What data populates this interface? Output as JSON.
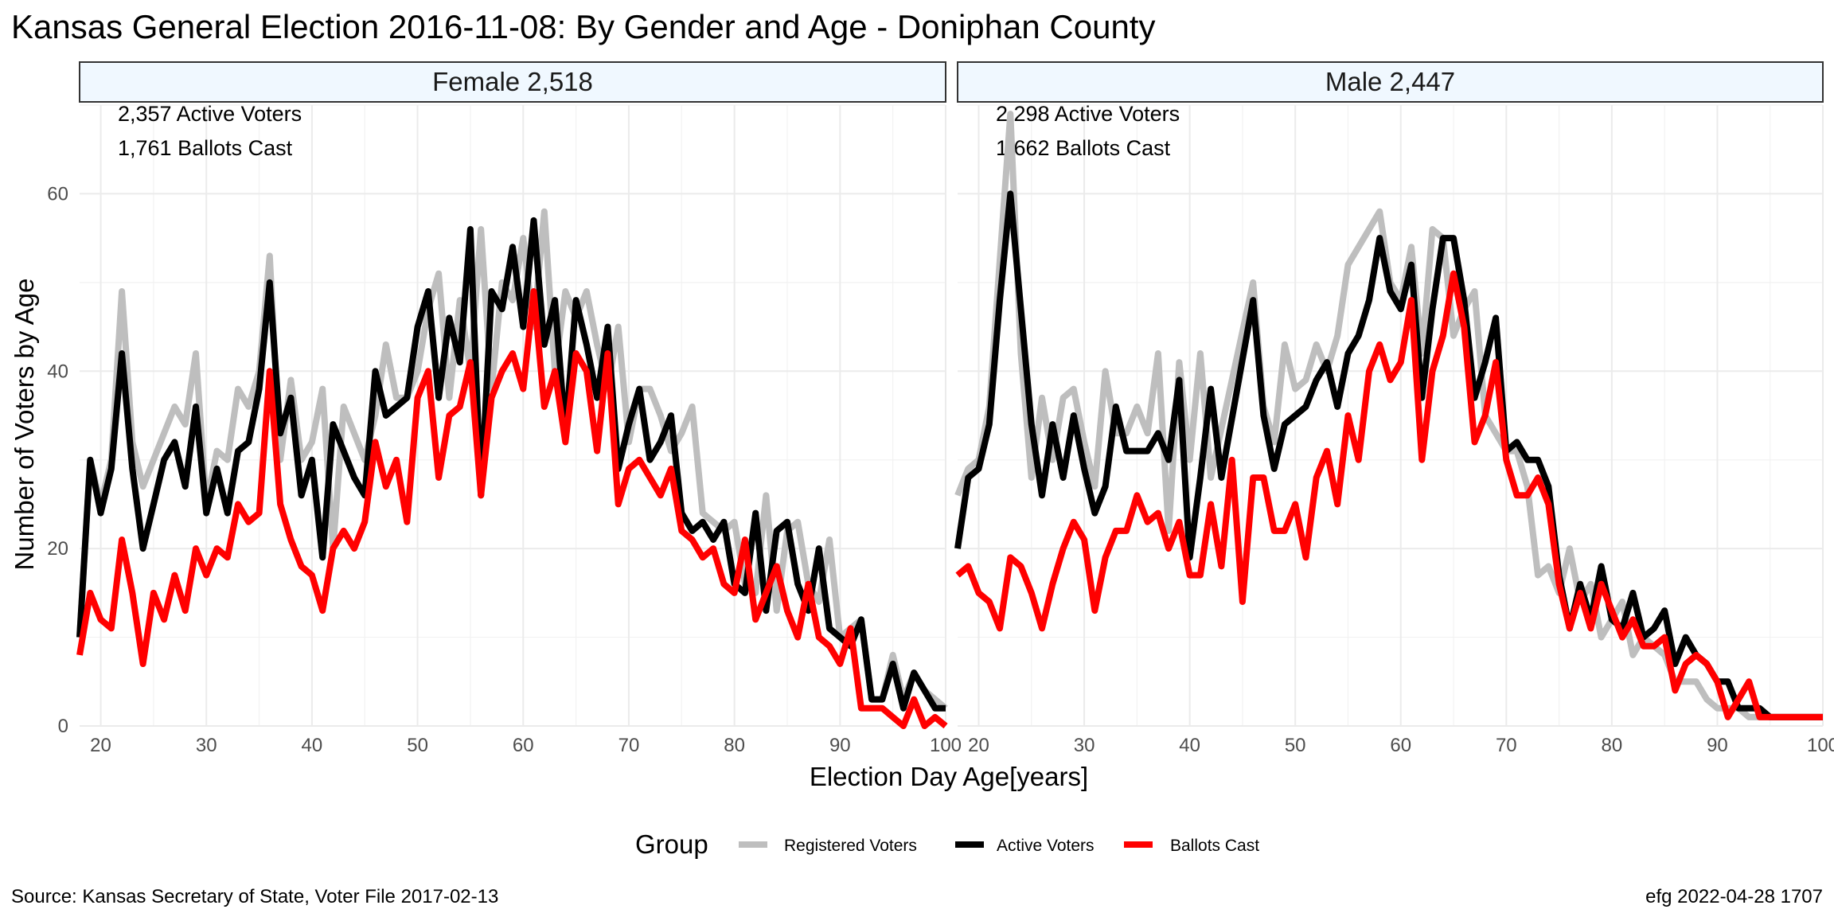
{
  "title": "Kansas General Election 2016-11-08:  By Gender and Age - Doniphan County",
  "caption_left": "Source:  Kansas Secretary of State, Voter File  2017-02-13",
  "caption_right": "efg 2022-04-28 1707",
  "colors": {
    "registered": "#bebebe",
    "active": "#000000",
    "ballots": "#ff0000",
    "strip_fill": "#f0f8ff"
  },
  "chart_data": {
    "type": "line",
    "xlabel": "Election Day Age[years]",
    "ylabel": "Number of Voters by Age",
    "xlim": [
      18,
      100
    ],
    "ylim": [
      0,
      70
    ],
    "x_ticks": [
      20,
      30,
      40,
      50,
      60,
      70,
      80,
      90,
      100
    ],
    "y_ticks": [
      0,
      20,
      40,
      60
    ],
    "legend": {
      "title": "Group",
      "position": "bottom",
      "entries": [
        "Registered Voters",
        "Active Voters",
        "Ballots Cast"
      ]
    },
    "panels": [
      {
        "strip": "Female 2,518",
        "annotations": [
          "2,357 Active Voters",
          "1,761 Ballots Cast"
        ],
        "x_start": 18,
        "series": [
          {
            "name": "Registered Voters",
            "values": [
              10,
              30,
              25,
              30,
              49,
              32,
              27,
              30,
              33,
              36,
              34,
              42,
              25,
              31,
              30,
              38,
              36,
              40,
              53,
              30,
              39,
              30,
              32,
              38,
              20,
              36,
              33,
              30,
              35,
              43,
              37,
              37,
              40,
              47,
              51,
              37,
              48,
              40,
              56,
              38,
              50,
              48,
              55,
              45,
              58,
              40,
              49,
              46,
              49,
              43,
              38,
              45,
              32,
              38,
              38,
              35,
              31,
              33,
              36,
              24,
              23,
              22,
              23,
              16,
              15,
              26,
              13,
              22,
              23,
              16,
              14,
              21,
              10,
              11,
              12,
              3,
              3,
              8,
              3,
              6,
              4,
              3,
              2
            ],
            "x": [
              18,
              19,
              20,
              21,
              22,
              23,
              24,
              25,
              26,
              27,
              28,
              29,
              30,
              31,
              32,
              33,
              34,
              35,
              36,
              37,
              38,
              39,
              40,
              41,
              42,
              43,
              44,
              45,
              46,
              47,
              48,
              49,
              50,
              51,
              52,
              53,
              54,
              55,
              56,
              57,
              58,
              59,
              60,
              61,
              62,
              63,
              64,
              65,
              66,
              67,
              68,
              69,
              70,
              71,
              72,
              73,
              74,
              75,
              76,
              77,
              78,
              79,
              80,
              81,
              82,
              83,
              84,
              85,
              86,
              87,
              88,
              89,
              90,
              91,
              92,
              93,
              94,
              95,
              96,
              97,
              98,
              99,
              100
            ]
          },
          {
            "name": "Active Voters",
            "values": [
              10,
              30,
              24,
              29,
              42,
              29,
              20,
              25,
              30,
              32,
              27,
              36,
              24,
              29,
              24,
              31,
              32,
              38,
              50,
              33,
              37,
              26,
              30,
              19,
              34,
              31,
              28,
              26,
              40,
              35,
              36,
              37,
              45,
              49,
              37,
              46,
              41,
              56,
              26,
              49,
              47,
              54,
              45,
              57,
              43,
              48,
              33,
              48,
              43,
              37,
              45,
              29,
              34,
              38,
              30,
              32,
              35,
              24,
              22,
              23,
              21,
              23,
              16,
              15,
              24,
              13,
              22,
              23,
              16,
              13,
              20,
              11,
              10,
              9,
              12,
              3,
              3,
              7,
              2,
              6,
              4,
              2,
              2
            ],
            "x": [
              18,
              19,
              20,
              21,
              22,
              23,
              24,
              25,
              26,
              27,
              28,
              29,
              30,
              31,
              32,
              33,
              34,
              35,
              36,
              37,
              38,
              39,
              40,
              41,
              42,
              43,
              44,
              45,
              46,
              47,
              48,
              49,
              50,
              51,
              52,
              53,
              54,
              55,
              56,
              57,
              58,
              59,
              60,
              61,
              62,
              63,
              64,
              65,
              66,
              67,
              68,
              69,
              70,
              71,
              72,
              73,
              74,
              75,
              76,
              77,
              78,
              79,
              80,
              81,
              82,
              83,
              84,
              85,
              86,
              87,
              88,
              89,
              90,
              91,
              92,
              93,
              94,
              95,
              96,
              97,
              98,
              99,
              100
            ]
          },
          {
            "name": "Ballots Cast",
            "values": [
              8,
              15,
              12,
              11,
              21,
              15,
              7,
              15,
              12,
              17,
              13,
              20,
              17,
              20,
              19,
              25,
              23,
              24,
              40,
              25,
              21,
              18,
              17,
              13,
              20,
              22,
              20,
              23,
              32,
              27,
              30,
              23,
              37,
              40,
              28,
              35,
              36,
              41,
              26,
              37,
              40,
              42,
              38,
              49,
              36,
              40,
              32,
              42,
              40,
              31,
              42,
              25,
              29,
              30,
              28,
              26,
              29,
              22,
              21,
              19,
              20,
              16,
              15,
              21,
              12,
              15,
              18,
              13,
              10,
              16,
              10,
              9,
              7,
              11,
              2,
              2,
              2,
              1,
              0,
              3,
              0,
              1,
              0
            ],
            "x": [
              18,
              19,
              20,
              21,
              22,
              23,
              24,
              25,
              26,
              27,
              28,
              29,
              30,
              31,
              32,
              33,
              34,
              35,
              36,
              37,
              38,
              39,
              40,
              41,
              42,
              43,
              44,
              45,
              46,
              47,
              48,
              49,
              50,
              51,
              52,
              53,
              54,
              55,
              56,
              57,
              58,
              59,
              60,
              61,
              62,
              63,
              64,
              65,
              66,
              67,
              68,
              69,
              70,
              71,
              72,
              73,
              74,
              75,
              76,
              77,
              78,
              79,
              80,
              81,
              82,
              83,
              84,
              85,
              86,
              87,
              88,
              89,
              90,
              91,
              92,
              93,
              94,
              95,
              96,
              97,
              98,
              99,
              100
            ]
          }
        ]
      },
      {
        "strip": "Male 2,447",
        "annotations": [
          "2,298 Active Voters",
          "1,662 Ballots Cast"
        ],
        "series": [
          {
            "name": "Registered Voters",
            "values": [
              26,
              29,
              30,
              36,
              69,
              42,
              28,
              37,
              30,
              37,
              38,
              32,
              27,
              40,
              33,
              33,
              36,
              33,
              42,
              22,
              41,
              30,
              42,
              28,
              50,
              36,
              32,
              43,
              38,
              39,
              43,
              40,
              44,
              52,
              58,
              50,
              48,
              54,
              42,
              56,
              55,
              44,
              47,
              49,
              35,
              33,
              31,
              31,
              27,
              17,
              18,
              15,
              20,
              14,
              16,
              10,
              12,
              14,
              8,
              10,
              9,
              8,
              5,
              5,
              5,
              3,
              2,
              2,
              2,
              1,
              1,
              1,
              1
            ],
            "x": [
              18,
              19,
              20,
              21,
              23,
              24,
              25,
              26,
              27,
              28,
              29,
              30,
              31,
              32,
              33,
              34,
              35,
              36,
              37,
              38,
              39,
              40,
              41,
              42,
              46,
              47,
              48,
              49,
              50,
              51,
              52,
              53,
              54,
              55,
              58,
              59,
              60,
              61,
              62,
              63,
              64,
              65,
              66,
              67,
              68,
              69,
              70,
              71,
              72,
              73,
              74,
              75,
              76,
              77,
              78,
              79,
              80,
              81,
              82,
              83,
              84,
              85,
              86,
              87,
              88,
              89,
              90,
              91,
              92,
              93,
              94,
              95,
              100
            ]
          },
          {
            "name": "Active Voters",
            "values": [
              20,
              28,
              29,
              34,
              48,
              60,
              47,
              34,
              26,
              34,
              28,
              35,
              29,
              24,
              27,
              36,
              31,
              31,
              31,
              33,
              30,
              39,
              19,
              28,
              38,
              28,
              48,
              35,
              29,
              34,
              35,
              36,
              39,
              41,
              36,
              42,
              44,
              48,
              55,
              49,
              47,
              52,
              37,
              47,
              55,
              55,
              48,
              37,
              41,
              46,
              31,
              32,
              30,
              30,
              27,
              17,
              11,
              16,
              12,
              18,
              12,
              11,
              15,
              10,
              11,
              13,
              7,
              10,
              8,
              7,
              5,
              5,
              2,
              2,
              2,
              1,
              1,
              1,
              1
            ],
            "x": [
              18,
              19,
              20,
              21,
              22,
              23,
              24,
              25,
              26,
              27,
              28,
              29,
              30,
              31,
              32,
              33,
              34,
              35,
              36,
              37,
              38,
              39,
              40,
              41,
              42,
              43,
              46,
              47,
              48,
              49,
              50,
              51,
              52,
              53,
              54,
              55,
              56,
              57,
              58,
              59,
              60,
              61,
              62,
              63,
              64,
              65,
              66,
              67,
              68,
              69,
              70,
              71,
              72,
              73,
              74,
              75,
              76,
              77,
              78,
              79,
              80,
              81,
              82,
              83,
              84,
              85,
              86,
              87,
              88,
              89,
              90,
              91,
              92,
              93,
              94,
              95,
              96,
              97,
              100
            ]
          },
          {
            "name": "Ballots Cast",
            "values": [
              17,
              18,
              15,
              14,
              11,
              19,
              18,
              15,
              11,
              16,
              20,
              23,
              21,
              13,
              19,
              22,
              22,
              26,
              23,
              24,
              20,
              23,
              17,
              17,
              25,
              18,
              30,
              14,
              28,
              28,
              22,
              22,
              25,
              19,
              28,
              31,
              25,
              35,
              30,
              40,
              43,
              39,
              41,
              48,
              30,
              40,
              44,
              51,
              45,
              32,
              35,
              41,
              30,
              26,
              26,
              28,
              25,
              16,
              11,
              15,
              11,
              16,
              13,
              10,
              12,
              9,
              9,
              10,
              4,
              7,
              8,
              7,
              5,
              1,
              3,
              5,
              1,
              1,
              1,
              1,
              1,
              1
            ],
            "x": [
              18,
              19,
              20,
              21,
              22,
              23,
              24,
              25,
              26,
              27,
              28,
              29,
              30,
              31,
              32,
              33,
              34,
              35,
              36,
              37,
              38,
              39,
              40,
              41,
              42,
              43,
              44,
              45,
              46,
              47,
              48,
              49,
              50,
              51,
              52,
              53,
              54,
              55,
              56,
              57,
              58,
              59,
              60,
              61,
              62,
              63,
              64,
              65,
              66,
              67,
              68,
              69,
              70,
              71,
              72,
              73,
              74,
              75,
              76,
              77,
              78,
              79,
              80,
              81,
              82,
              83,
              84,
              85,
              86,
              87,
              88,
              89,
              90,
              91,
              92,
              93,
              94,
              95,
              96,
              97,
              98,
              100
            ]
          }
        ]
      }
    ]
  }
}
